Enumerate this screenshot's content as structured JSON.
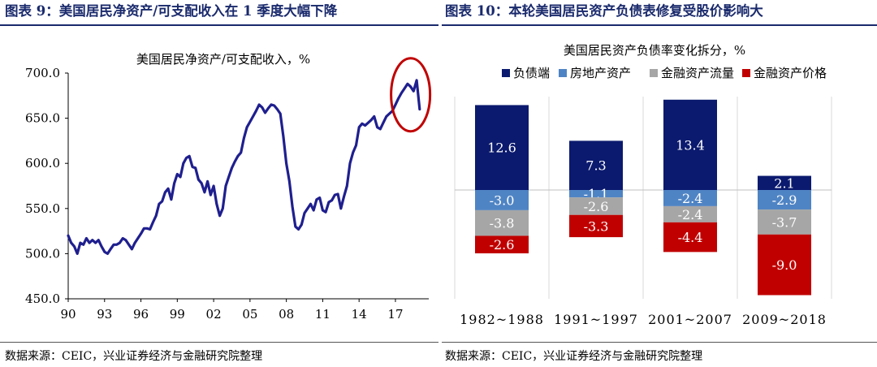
{
  "left_panel": {
    "header": "图表 9：美国居民净资产/可支配收入在 1 季度大幅下降",
    "source": "数据来源：CEIC，兴业证券经济与金融研究院整理"
  },
  "right_panel": {
    "header": "图表 10：本轮美国居民资产负债表修复受股价影响大",
    "source": "数据来源：CEIC，兴业证券经济与金融研究院整理"
  },
  "colors": {
    "header_blue": "#1a2a6c",
    "line": "#1f1f8f",
    "highlight_circle": "#c00000",
    "debt": "#0b1a6e",
    "real_estate": "#4f84c4",
    "financial_flow": "#a6a6a6",
    "asset_price": "#c00000"
  },
  "chart_data": [
    {
      "type": "line",
      "title": "美国居民净资产/可支配收入，%",
      "xlabel": "",
      "ylabel": "",
      "ylim": [
        450,
        700
      ],
      "yticks": [
        "450.0",
        "500.0",
        "550.0",
        "600.0",
        "650.0",
        "700.0"
      ],
      "xticks": [
        "90",
        "93",
        "96",
        "99",
        "02",
        "05",
        "08",
        "11",
        "14",
        "17"
      ],
      "xtick_years": [
        1990,
        1993,
        1996,
        1999,
        2002,
        2005,
        2008,
        2011,
        2014,
        2017
      ],
      "annotation": "red circle highlighting the latest decline (2019 Q1)",
      "series": [
        {
          "x": [
            1990.0,
            1990.25,
            1990.5,
            1990.75,
            1991.0,
            1991.25,
            1991.5,
            1991.75,
            1992.0,
            1992.25,
            1992.5,
            1992.75,
            1993.0,
            1993.25,
            1993.5,
            1993.75,
            1994.0,
            1994.25,
            1994.5,
            1994.75,
            1995.0,
            1995.25,
            1995.5,
            1995.75,
            1996.0,
            1996.25,
            1996.5,
            1996.75,
            1997.0,
            1997.25,
            1997.5,
            1997.75,
            1998.0,
            1998.25,
            1998.5,
            1998.75,
            1999.0,
            1999.25,
            1999.5,
            1999.75,
            2000.0,
            2000.25,
            2000.5,
            2000.75,
            2001.0,
            2001.25,
            2001.5,
            2001.75,
            2002.0,
            2002.25,
            2002.5,
            2002.75,
            2003.0,
            2003.25,
            2003.5,
            2003.75,
            2004.0,
            2004.25,
            2004.5,
            2004.75,
            2005.0,
            2005.25,
            2005.5,
            2005.75,
            2006.0,
            2006.25,
            2006.5,
            2006.75,
            2007.0,
            2007.25,
            2007.5,
            2007.75,
            2008.0,
            2008.25,
            2008.5,
            2008.75,
            2009.0,
            2009.25,
            2009.5,
            2009.75,
            2010.0,
            2010.25,
            2010.5,
            2010.75,
            2011.0,
            2011.25,
            2011.5,
            2011.75,
            2012.0,
            2012.25,
            2012.5,
            2012.75,
            2013.0,
            2013.25,
            2013.5,
            2013.75,
            2014.0,
            2014.25,
            2014.5,
            2014.75,
            2015.0,
            2015.25,
            2015.5,
            2015.75,
            2016.0,
            2016.25,
            2016.5,
            2016.75,
            2017.0,
            2017.25,
            2017.5,
            2017.75,
            2018.0,
            2018.25,
            2018.5,
            2018.75,
            2019.0
          ],
          "y": [
            520,
            512,
            508,
            500,
            512,
            510,
            517,
            512,
            515,
            512,
            515,
            508,
            502,
            500,
            505,
            510,
            510,
            512,
            517,
            515,
            510,
            505,
            512,
            517,
            522,
            528,
            528,
            527,
            535,
            542,
            555,
            558,
            568,
            572,
            560,
            578,
            588,
            585,
            600,
            606,
            608,
            596,
            595,
            582,
            578,
            568,
            580,
            565,
            575,
            555,
            542,
            550,
            575,
            585,
            595,
            602,
            608,
            612,
            628,
            640,
            646,
            652,
            658,
            665,
            662,
            656,
            661,
            665,
            664,
            660,
            655,
            630,
            600,
            580,
            552,
            530,
            527,
            532,
            545,
            550,
            555,
            548,
            560,
            562,
            548,
            546,
            557,
            559,
            565,
            566,
            550,
            563,
            575,
            600,
            612,
            620,
            640,
            644,
            642,
            645,
            648,
            652,
            640,
            638,
            645,
            652,
            655,
            658,
            665,
            672,
            678,
            683,
            688,
            685,
            680,
            692,
            660
          ]
        }
      ]
    },
    {
      "type": "bar",
      "stacked": true,
      "title": "美国居民资产负债率变化拆分，%",
      "categories": [
        "1982~1988",
        "1991~1997",
        "2001~2007",
        "2009~2018"
      ],
      "series": [
        {
          "name": "负债端",
          "values": [
            12.6,
            7.3,
            13.4,
            2.1
          ]
        },
        {
          "name": "房地产资产",
          "values": [
            -3.0,
            -1.1,
            -2.4,
            -2.9
          ]
        },
        {
          "name": "金融资产流量",
          "values": [
            -3.8,
            -2.6,
            -2.4,
            -3.7
          ]
        },
        {
          "name": "金融资产价格",
          "values": [
            -2.6,
            -3.3,
            -4.4,
            -9.0
          ]
        }
      ],
      "data_labels": [
        [
          "12.6",
          "-3.0",
          "-3.8",
          "-2.6"
        ],
        [
          "7.3",
          "-1.1",
          "-2.6",
          "-3.3"
        ],
        [
          "13.4",
          "-2.4",
          "-2.4",
          "-4.4"
        ],
        [
          "2.1",
          "-2.9",
          "-3.7",
          "-9.0"
        ]
      ],
      "legend_placement": "top",
      "grid": false
    }
  ]
}
